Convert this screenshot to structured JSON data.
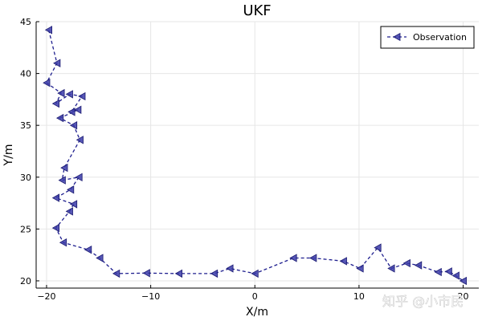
{
  "chart_data": {
    "type": "line",
    "title": "UKF",
    "xlabel": "X/m",
    "ylabel": "Y/m",
    "xlim": [
      -21,
      21.5
    ],
    "ylim": [
      19.3,
      45
    ],
    "xticks": [
      -20,
      -10,
      0,
      10,
      20
    ],
    "yticks": [
      20,
      25,
      30,
      35,
      40,
      45
    ],
    "xtick_labels": [
      "−20",
      "−10",
      "0",
      "10",
      "20"
    ],
    "ytick_labels": [
      "20",
      "25",
      "30",
      "35",
      "40",
      "45"
    ],
    "grid": true,
    "legend_position": "top-right",
    "series": [
      {
        "name": "Observation",
        "color": "#1f1f8f",
        "line_style": "dashed",
        "marker": "left-triangle",
        "x": [
          -19.8,
          -19.0,
          -20.0,
          -18.6,
          -19.1,
          -17.8,
          -16.6,
          -17.6,
          -17.0,
          -18.7,
          -17.4,
          -16.8,
          -18.3,
          -18.5,
          -16.9,
          -17.7,
          -19.1,
          -17.4,
          -17.8,
          -19.1,
          -18.4,
          -16.0,
          -14.9,
          -13.3,
          -10.4,
          -7.3,
          -3.9,
          -2.4,
          0.0,
          3.7,
          5.6,
          8.5,
          10.1,
          11.8,
          13.1,
          14.6,
          15.7,
          17.6,
          18.6,
          19.3,
          20.0
        ],
        "y": [
          44.2,
          41.0,
          39.1,
          38.1,
          37.1,
          38.0,
          37.8,
          36.3,
          36.5,
          35.7,
          35.0,
          33.6,
          30.9,
          29.7,
          30.0,
          28.8,
          28.0,
          27.4,
          26.7,
          25.1,
          23.7,
          23.0,
          22.2,
          20.7,
          20.75,
          20.7,
          20.7,
          21.2,
          20.7,
          22.2,
          22.2,
          21.9,
          21.2,
          23.2,
          21.2,
          21.7,
          21.5,
          20.85,
          20.9,
          20.5,
          20.0
        ]
      }
    ]
  },
  "watermark": "知乎 @小市民"
}
